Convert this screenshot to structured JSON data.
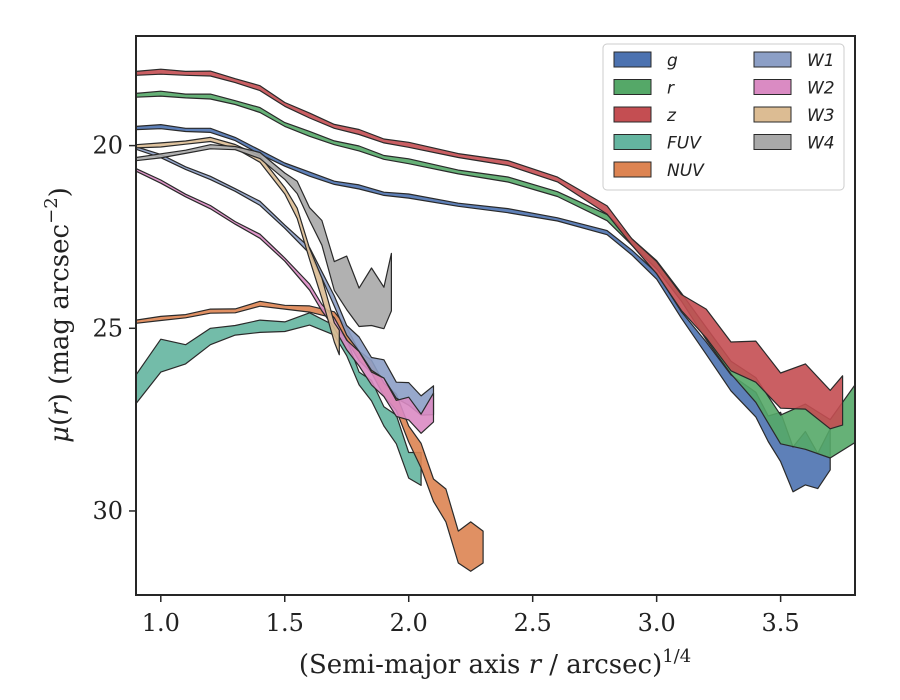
{
  "chart_data": {
    "type": "area",
    "xlabel_main": "(Semi-major axis ",
    "xlabel_var": "r",
    "xlabel_tail": " / arcsec)",
    "xlabel_exp": "1/4",
    "ylabel_mu": "μ",
    "ylabel_r": "r",
    "ylabel_tail": " (mag arcsec",
    "ylabel_exp": "−2",
    "xlim": [
      0.9,
      3.8
    ],
    "ylim": [
      32.3,
      17.0
    ],
    "y_inverted": true,
    "xticks": [
      1.0,
      1.5,
      2.0,
      2.5,
      3.0,
      3.5
    ],
    "xtick_labels": [
      "1.0",
      "1.5",
      "2.0",
      "2.5",
      "3.0",
      "3.5"
    ],
    "yticks": [
      20,
      25,
      30
    ],
    "ytick_labels": [
      "20",
      "25",
      "30"
    ],
    "legend": {
      "placement": "top-right",
      "columns": 2
    },
    "series": [
      {
        "name": "g",
        "color": "#4c72b0",
        "x": [
          0.9,
          1.0,
          1.1,
          1.2,
          1.3,
          1.4,
          1.5,
          1.6,
          1.7,
          1.8,
          1.9,
          2.0,
          2.2,
          2.4,
          2.6,
          2.8,
          2.9,
          3.0,
          3.1,
          3.2,
          3.3,
          3.4,
          3.45,
          3.5,
          3.55,
          3.6,
          3.65,
          3.7
        ],
        "y": [
          19.5,
          19.5,
          19.55,
          19.6,
          19.8,
          20.2,
          20.5,
          20.8,
          21.0,
          21.15,
          21.3,
          21.4,
          21.6,
          21.8,
          22.0,
          22.4,
          22.9,
          23.6,
          24.6,
          25.6,
          26.4,
          27.2,
          27.6,
          28.2,
          28.6,
          28.8,
          28.7,
          28.5
        ],
        "w": [
          0.1,
          0.1,
          0.1,
          0.1,
          0.1,
          0.1,
          0.1,
          0.1,
          0.1,
          0.1,
          0.1,
          0.1,
          0.1,
          0.1,
          0.1,
          0.1,
          0.15,
          0.15,
          0.2,
          0.3,
          0.5,
          0.6,
          0.8,
          1.2,
          1.4,
          1.3,
          1.1,
          1.0
        ]
      },
      {
        "name": "r",
        "color": "#55a868",
        "x": [
          0.9,
          1.0,
          1.1,
          1.2,
          1.3,
          1.4,
          1.5,
          1.6,
          1.7,
          1.8,
          1.9,
          2.0,
          2.2,
          2.4,
          2.6,
          2.8,
          2.9,
          3.0,
          3.1,
          3.2,
          3.3,
          3.4,
          3.5,
          3.6,
          3.7,
          3.8
        ],
        "y": [
          18.6,
          18.6,
          18.62,
          18.68,
          18.8,
          19.05,
          19.4,
          19.7,
          19.9,
          20.1,
          20.3,
          20.45,
          20.7,
          20.95,
          21.3,
          22.0,
          22.6,
          23.3,
          24.1,
          25.2,
          26.0,
          26.8,
          27.6,
          27.9,
          27.8,
          27.6
        ],
        "w": [
          0.12,
          0.12,
          0.12,
          0.12,
          0.12,
          0.12,
          0.12,
          0.12,
          0.12,
          0.12,
          0.12,
          0.12,
          0.12,
          0.12,
          0.15,
          0.15,
          0.2,
          0.2,
          0.25,
          0.3,
          0.4,
          0.6,
          0.9,
          1.1,
          1.2,
          1.4
        ]
      },
      {
        "name": "z",
        "color": "#c44e52",
        "x": [
          0.9,
          1.0,
          1.1,
          1.2,
          1.3,
          1.4,
          1.5,
          1.6,
          1.7,
          1.8,
          1.9,
          2.0,
          2.2,
          2.4,
          2.6,
          2.8,
          2.9,
          3.0,
          3.1,
          3.2,
          3.3,
          3.4,
          3.5,
          3.6,
          3.7,
          3.75
        ],
        "y": [
          18.0,
          18.0,
          18.0,
          18.05,
          18.2,
          18.45,
          18.85,
          19.2,
          19.45,
          19.65,
          19.85,
          20.0,
          20.25,
          20.5,
          20.9,
          21.8,
          22.6,
          23.4,
          24.2,
          25.0,
          25.6,
          26.1,
          26.5,
          26.8,
          27.0,
          27.2
        ],
        "w": [
          0.12,
          0.12,
          0.12,
          0.12,
          0.12,
          0.12,
          0.12,
          0.12,
          0.12,
          0.12,
          0.12,
          0.12,
          0.12,
          0.12,
          0.15,
          0.2,
          0.2,
          0.3,
          0.5,
          0.7,
          0.9,
          1.0,
          1.1,
          1.1,
          1.2,
          1.2
        ]
      },
      {
        "name": "FUV",
        "color": "#64b5a0",
        "x": [
          0.9,
          1.0,
          1.1,
          1.2,
          1.3,
          1.4,
          1.5,
          1.6,
          1.7,
          1.75,
          1.8,
          1.85,
          1.9,
          1.95,
          2.0,
          2.05
        ],
        "y": [
          26.5,
          25.9,
          25.6,
          25.3,
          25.0,
          25.0,
          24.9,
          24.8,
          25.0,
          25.6,
          26.3,
          26.8,
          27.3,
          27.9,
          28.6,
          29.0
        ],
        "w": [
          0.9,
          0.8,
          0.6,
          0.4,
          0.3,
          0.3,
          0.3,
          0.3,
          0.3,
          0.4,
          0.4,
          0.5,
          0.6,
          0.7,
          0.8,
          0.8
        ]
      },
      {
        "name": "NUV",
        "color": "#dd8452",
        "x": [
          0.9,
          1.0,
          1.1,
          1.2,
          1.3,
          1.4,
          1.5,
          1.6,
          1.7,
          1.75,
          1.8,
          1.85,
          1.9,
          1.95,
          2.0,
          2.05,
          2.1,
          2.15,
          2.2,
          2.25,
          2.3
        ],
        "y": [
          24.8,
          24.75,
          24.65,
          24.55,
          24.5,
          24.35,
          24.4,
          24.5,
          24.6,
          25.2,
          25.7,
          26.1,
          26.6,
          27.1,
          27.8,
          28.6,
          29.3,
          30.0,
          30.8,
          31.2,
          30.8
        ],
        "w": [
          0.1,
          0.1,
          0.1,
          0.1,
          0.12,
          0.12,
          0.12,
          0.15,
          0.2,
          0.3,
          0.3,
          0.3,
          0.4,
          0.4,
          0.5,
          0.6,
          0.7,
          0.8,
          1.0,
          1.2,
          1.0
        ]
      },
      {
        "name": "W1",
        "color": "#8c9fc6",
        "x": [
          0.9,
          1.0,
          1.1,
          1.2,
          1.3,
          1.4,
          1.5,
          1.6,
          1.65,
          1.7,
          1.75,
          1.8,
          1.85,
          1.9,
          1.95,
          2.0,
          2.05,
          2.1
        ],
        "y": [
          20.05,
          20.3,
          20.6,
          20.9,
          21.2,
          21.6,
          22.2,
          22.9,
          23.5,
          24.3,
          25.0,
          25.5,
          25.9,
          26.2,
          26.6,
          26.9,
          27.0,
          27.1
        ],
        "w": [
          0.08,
          0.08,
          0.08,
          0.08,
          0.08,
          0.1,
          0.1,
          0.15,
          0.2,
          0.25,
          0.3,
          0.35,
          0.4,
          0.45,
          0.5,
          0.55,
          0.6,
          0.7
        ]
      },
      {
        "name": "W2",
        "color": "#da8bc3",
        "x": [
          0.9,
          1.0,
          1.1,
          1.2,
          1.3,
          1.4,
          1.5,
          1.6,
          1.65,
          1.7,
          1.75,
          1.8,
          1.85,
          1.9,
          1.95,
          2.0,
          2.05,
          2.1
        ],
        "y": [
          20.65,
          21.0,
          21.35,
          21.7,
          22.1,
          22.5,
          23.1,
          23.9,
          24.4,
          24.9,
          25.4,
          25.9,
          26.3,
          26.7,
          27.1,
          27.3,
          27.5,
          27.3
        ],
        "w": [
          0.08,
          0.08,
          0.08,
          0.08,
          0.08,
          0.1,
          0.1,
          0.15,
          0.2,
          0.25,
          0.3,
          0.35,
          0.4,
          0.45,
          0.5,
          0.55,
          0.6,
          0.7
        ]
      },
      {
        "name": "W3",
        "color": "#dcbc93",
        "x": [
          0.9,
          1.0,
          1.1,
          1.2,
          1.3,
          1.4,
          1.5,
          1.55,
          1.6,
          1.65,
          1.7,
          1.72
        ],
        "y": [
          20.0,
          20.0,
          19.9,
          19.85,
          20.0,
          20.4,
          21.2,
          21.9,
          22.9,
          24.0,
          25.0,
          25.5
        ],
        "w": [
          0.1,
          0.1,
          0.1,
          0.1,
          0.12,
          0.15,
          0.2,
          0.25,
          0.35,
          0.5,
          0.6,
          0.6
        ]
      },
      {
        "name": "W4",
        "color": "#a9a9a9",
        "x": [
          0.9,
          1.0,
          1.1,
          1.2,
          1.3,
          1.4,
          1.5,
          1.55,
          1.6,
          1.65,
          1.7,
          1.75,
          1.8,
          1.85,
          1.9,
          1.93
        ],
        "y": [
          20.35,
          20.3,
          20.15,
          20.05,
          20.05,
          20.3,
          20.8,
          21.2,
          21.8,
          22.5,
          23.4,
          24.0,
          24.2,
          24.4,
          24.2,
          24.0
        ],
        "w": [
          0.1,
          0.1,
          0.1,
          0.1,
          0.1,
          0.15,
          0.2,
          0.3,
          0.4,
          0.6,
          0.9,
          1.3,
          1.2,
          1.4,
          1.3,
          1.4
        ]
      }
    ]
  }
}
